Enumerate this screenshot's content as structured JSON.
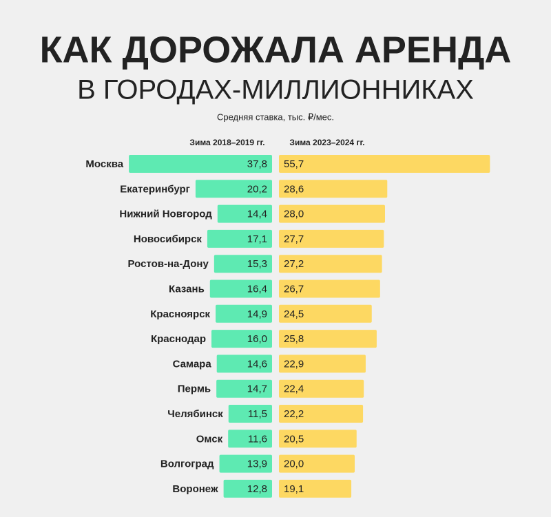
{
  "chart_data": {
    "type": "butterfly-bar",
    "title": "КАК ДОРОЖАЛА АРЕНДА",
    "subtitle": "В ГОРОДАХ-МИЛЛИОННИКАХ",
    "note": "Средняя ставка, тыс. ₽/мес.",
    "categories": [
      "Москва",
      "Екатеринбург",
      "Нижний Новгород",
      "Новосибирск",
      "Ростов-на-Дону",
      "Казань",
      "Красноярск",
      "Краснодар",
      "Самара",
      "Пермь",
      "Челябинск",
      "Омск",
      "Волгоград",
      "Воронеж"
    ],
    "series": [
      {
        "name": "Зима 2018–2019 гг.",
        "color": "#5eeab2",
        "values": [
          37.8,
          20.2,
          14.4,
          17.1,
          15.3,
          16.4,
          14.9,
          16.0,
          14.6,
          14.7,
          11.5,
          11.6,
          13.9,
          12.8
        ],
        "value_labels": [
          "37,8",
          "20,2",
          "14,4",
          "17,1",
          "15,3",
          "16,4",
          "14,9",
          "16,0",
          "14,6",
          "14,7",
          "11,5",
          "11,6",
          "13,9",
          "12,8"
        ]
      },
      {
        "name": "Зима 2023–2024 гг.",
        "color": "#fdd862",
        "values": [
          55.7,
          28.6,
          28.0,
          27.7,
          27.2,
          26.7,
          24.5,
          25.8,
          22.9,
          22.4,
          22.2,
          20.5,
          20.0,
          19.1
        ],
        "value_labels": [
          "55,7",
          "28,6",
          "28,0",
          "27,7",
          "27,2",
          "26,7",
          "24,5",
          "25,8",
          "22,9",
          "22,4",
          "22,2",
          "20,5",
          "20,0",
          "19,1"
        ]
      }
    ]
  }
}
